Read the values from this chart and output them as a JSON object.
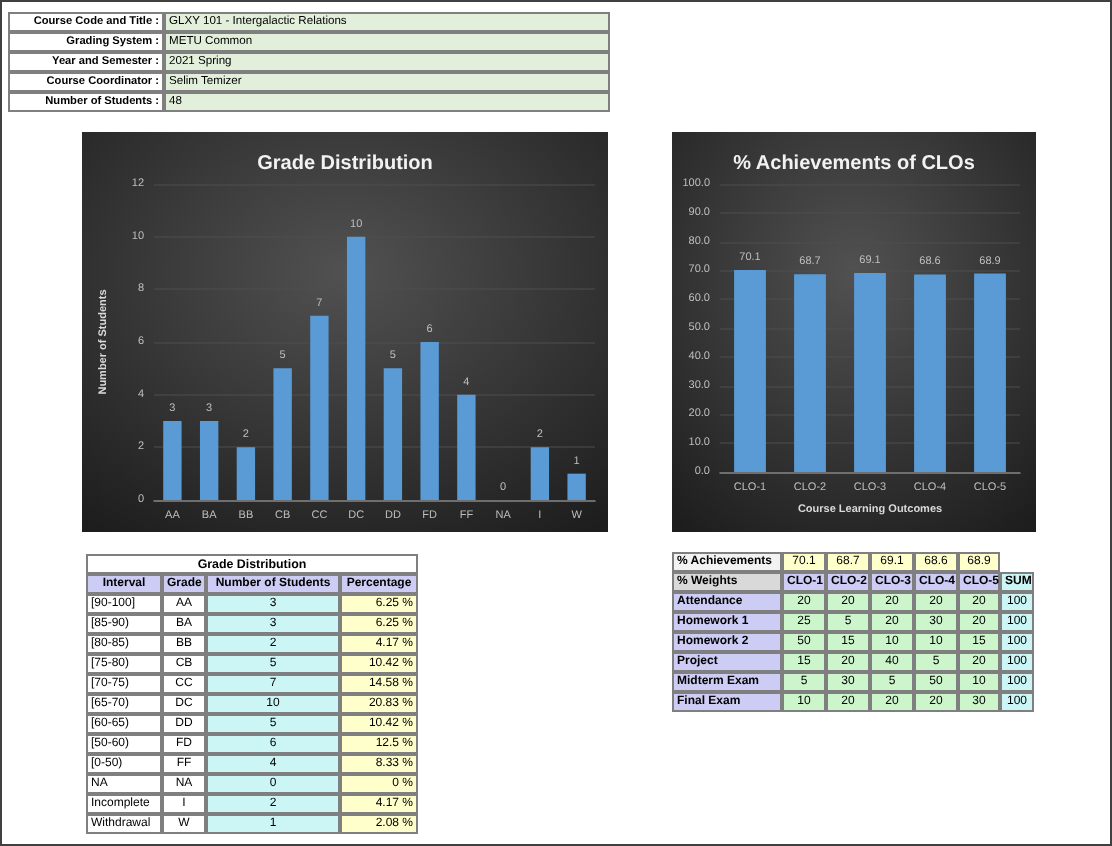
{
  "chart_data": [
    {
      "type": "other",
      "annotations": [
        "Course Code and Title :",
        "GLXY 101 - Intergalactic Relations",
        "Grading System :",
        "METU Common",
        "Year and Semester :",
        "2021 Spring",
        "Course Coordinator :",
        "Selim Temizer",
        "Number of Students :",
        "48"
      ]
    },
    {
      "type": "bar",
      "title": "Grade Distribution",
      "ylabel": "Number of Students",
      "categories": [
        "AA",
        "BA",
        "BB",
        "CB",
        "CC",
        "DC",
        "DD",
        "FD",
        "FF",
        "NA",
        "I",
        "W"
      ],
      "values": [
        3,
        3,
        2,
        5,
        7,
        10,
        5,
        6,
        4,
        0,
        2,
        1
      ],
      "color": "#5b9bd5",
      "ylim": [
        0,
        12
      ],
      "yticks": [
        0,
        2,
        4,
        6,
        8,
        10,
        12
      ],
      "grid": "y",
      "data_labels": true
    },
    {
      "type": "bar",
      "title": "% Achievements of CLOs",
      "xlabel": "Course Learning Outcomes",
      "categories": [
        "CLO-1",
        "CLO-2",
        "CLO-3",
        "CLO-4",
        "CLO-5"
      ],
      "values": [
        70.1,
        68.7,
        69.1,
        68.6,
        68.9
      ],
      "color": "#5b9bd5",
      "ylim": [
        0,
        100
      ],
      "yticks": [
        {
          "value": 0,
          "label": "0.0"
        },
        {
          "value": 10,
          "label": "10.0"
        },
        {
          "value": 20,
          "label": "20.0"
        },
        {
          "value": 30,
          "label": "30.0"
        },
        {
          "value": 40,
          "label": "40.0"
        },
        {
          "value": 50,
          "label": "50.0"
        },
        {
          "value": 60,
          "label": "60.0"
        },
        {
          "value": 70,
          "label": "70.0"
        },
        {
          "value": 80,
          "label": "80.0"
        },
        {
          "value": 90,
          "label": "90.0"
        },
        {
          "value": 100,
          "label": "100.0"
        }
      ],
      "grid": "y",
      "data_labels": true
    },
    {
      "type": "other",
      "title": "Grade Distribution",
      "annotations": [
        "Interval",
        "Grade",
        "Number of Students",
        "Percentage",
        "[90-100]",
        "AA",
        "3",
        "6.25 %",
        "[85-90)",
        "BA",
        "3",
        "6.25 %",
        "[80-85)",
        "BB",
        "2",
        "4.17 %",
        "[75-80)",
        "CB",
        "5",
        "10.42 %",
        "[70-75)",
        "CC",
        "7",
        "14.58 %",
        "[65-70)",
        "DC",
        "10",
        "20.83 %",
        "[60-65)",
        "DD",
        "5",
        "10.42 %",
        "[50-60)",
        "FD",
        "6",
        "12.5 %",
        "[0-50)",
        "FF",
        "4",
        "8.33 %",
        "NA",
        "NA",
        "0",
        "0 %",
        "Incomplete",
        "I",
        "2",
        "4.17 %",
        "Withdrawal",
        "W",
        "1",
        "2.08 %"
      ]
    },
    {
      "type": "other",
      "annotations": [
        "% Achievements",
        "70.1",
        "68.7",
        "69.1",
        "68.6",
        "68.9",
        "% Weights",
        "CLO-1",
        "CLO-2",
        "CLO-3",
        "CLO-4",
        "CLO-5",
        "SUM",
        "Attendance",
        "20",
        "20",
        "20",
        "20",
        "20",
        "100",
        "Homework 1",
        "25",
        "5",
        "20",
        "30",
        "20",
        "100",
        "Homework 2",
        "50",
        "15",
        "10",
        "10",
        "15",
        "100",
        "Project",
        "15",
        "20",
        "40",
        "5",
        "20",
        "100",
        "Midterm Exam",
        "5",
        "30",
        "5",
        "50",
        "10",
        "100",
        "Final Exam",
        "10",
        "20",
        "20",
        "20",
        "30",
        "100"
      ]
    }
  ]
}
